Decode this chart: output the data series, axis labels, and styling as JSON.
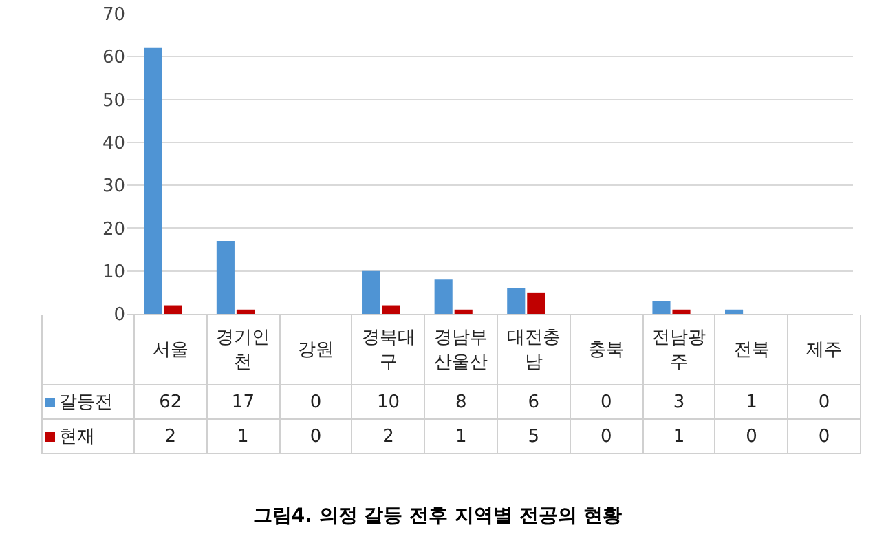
{
  "chart_data": {
    "type": "bar",
    "title": "그림4. 의정 갈등 전후 지역별 전공의 현황",
    "categories": [
      "서울",
      "경기인천",
      "강원",
      "경북대구",
      "경남부산울산",
      "대전충남",
      "충북",
      "전남광주",
      "전북",
      "제주"
    ],
    "series": [
      {
        "name": "갈등전",
        "color": "#4f94d4",
        "values": [
          62,
          17,
          0,
          10,
          8,
          6,
          0,
          3,
          1,
          0
        ]
      },
      {
        "name": "현재",
        "color": "#c00000",
        "values": [
          2,
          1,
          0,
          2,
          1,
          5,
          0,
          1,
          0,
          0
        ]
      }
    ],
    "ylim": [
      0,
      70
    ],
    "yticks": [
      0,
      10,
      20,
      30,
      40,
      50,
      60,
      70
    ],
    "grid": "y",
    "data_labels": true,
    "legend": "bottom left"
  }
}
